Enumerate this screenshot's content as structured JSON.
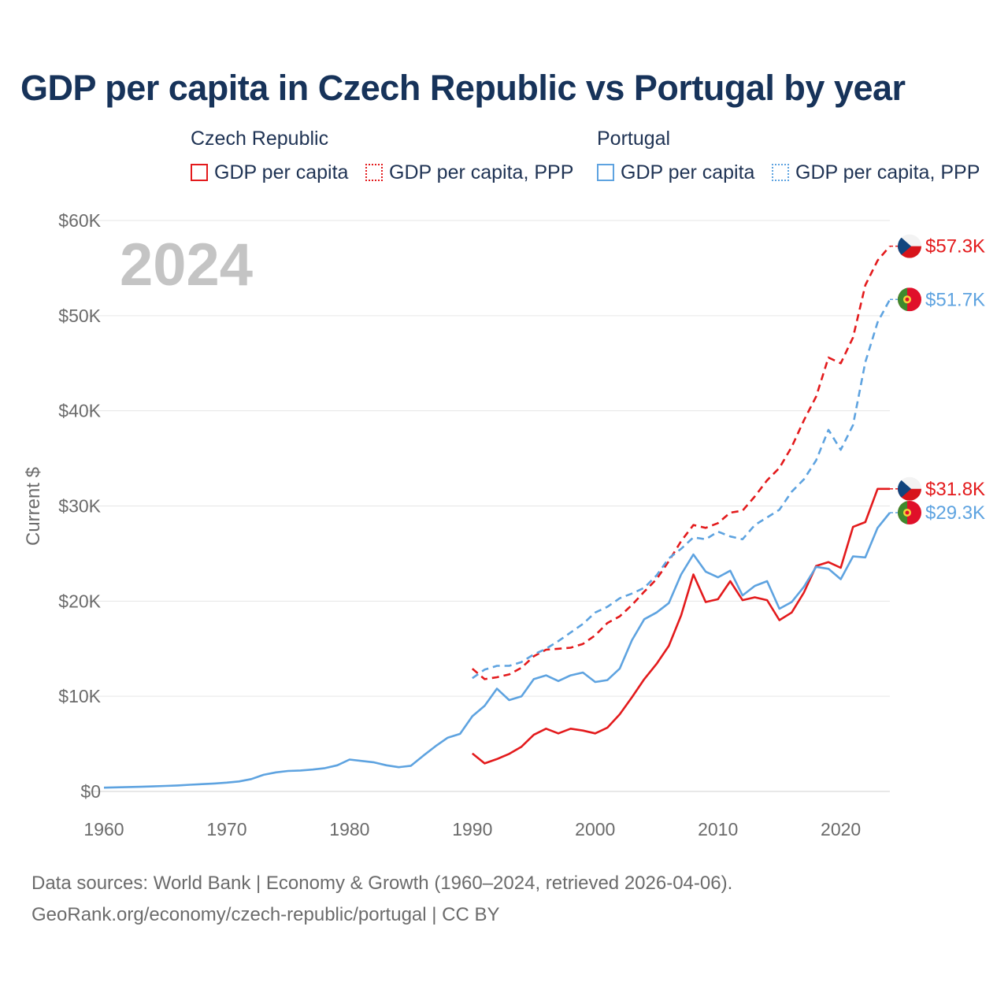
{
  "chart_data": {
    "type": "line",
    "title": "GDP per capita in Czech Republic vs Portugal by year",
    "year_label": "2024",
    "ylabel": "Current $",
    "xlim": [
      1960,
      2024
    ],
    "ylim": [
      0,
      60000
    ],
    "x_ticks": [
      1960,
      1970,
      1980,
      1990,
      2000,
      2010,
      2020
    ],
    "y_ticks": [
      {
        "value": 0,
        "label": "$0"
      },
      {
        "value": 10000,
        "label": "$10K"
      },
      {
        "value": 20000,
        "label": "$20K"
      },
      {
        "value": 30000,
        "label": "$30K"
      },
      {
        "value": 40000,
        "label": "$40K"
      },
      {
        "value": 50000,
        "label": "$50K"
      },
      {
        "value": 60000,
        "label": "$60K"
      }
    ],
    "legend": {
      "groups": [
        {
          "name": "Czech Republic",
          "items": [
            "GDP per capita",
            "GDP per capita, PPP"
          ]
        },
        {
          "name": "Portugal",
          "items": [
            "GDP per capita",
            "GDP per capita, PPP"
          ]
        }
      ]
    },
    "colors": {
      "czech": "#e31a1c",
      "portugal": "#5ea3e0",
      "grid": "#e6e6e6",
      "axis_text": "#6b6b6b",
      "year_label": "#c4c4c4"
    },
    "series": [
      {
        "name": "Czech Republic GDP per capita",
        "country": "czech",
        "style": "solid",
        "start_year": 1990,
        "values": [
          4000,
          2950,
          3400,
          3950,
          4700,
          5950,
          6600,
          6100,
          6600,
          6400,
          6100,
          6700,
          8100,
          9900,
          11800,
          13400,
          15300,
          18500,
          22800,
          19900,
          20200,
          22100,
          20100,
          20400,
          20100,
          18000,
          18800,
          20900,
          23700,
          24100,
          23500,
          27800,
          28300,
          31800,
          31800
        ],
        "end_label": "$31.8K"
      },
      {
        "name": "Czech Republic GDP per capita, PPP",
        "country": "czech",
        "style": "dashed",
        "start_year": 1990,
        "values": [
          12900,
          11800,
          12000,
          12300,
          13000,
          14200,
          14900,
          15000,
          15100,
          15500,
          16400,
          17700,
          18400,
          19600,
          21000,
          22300,
          24200,
          26300,
          28000,
          27700,
          28200,
          29300,
          29500,
          31000,
          32700,
          34000,
          36200,
          39000,
          41500,
          45600,
          45000,
          47700,
          53200,
          55800,
          57300
        ],
        "end_label": "$57.3K"
      },
      {
        "name": "Portugal GDP per capita",
        "country": "portugal",
        "style": "solid",
        "start_year": 1960,
        "values": [
          400,
          430,
          460,
          490,
          530,
          580,
          630,
          700,
          770,
          840,
          930,
          1050,
          1300,
          1750,
          2000,
          2150,
          2200,
          2300,
          2450,
          2750,
          3350,
          3200,
          3050,
          2750,
          2550,
          2700,
          3750,
          4750,
          5650,
          6050,
          7900,
          9000,
          10800,
          9600,
          10000,
          11800,
          12200,
          11600,
          12200,
          12500,
          11500,
          11700,
          12900,
          15900,
          18100,
          18800,
          19800,
          22800,
          24900,
          23100,
          22500,
          23200,
          20600,
          21600,
          22100,
          19200,
          19900,
          21500,
          23600,
          23400,
          22300,
          24700,
          24600,
          27700,
          29300
        ],
        "end_label": "$29.3K"
      },
      {
        "name": "Portugal GDP per capita, PPP",
        "country": "portugal",
        "style": "dashed",
        "start_year": 1990,
        "values": [
          11900,
          12800,
          13200,
          13200,
          13600,
          14400,
          15000,
          15800,
          16700,
          17600,
          18800,
          19400,
          20300,
          20800,
          21400,
          22700,
          24500,
          25500,
          26700,
          26500,
          27300,
          26800,
          26500,
          28000,
          28800,
          29600,
          31500,
          32800,
          34800,
          38000,
          35900,
          38500,
          45100,
          49300,
          51700
        ],
        "end_label": "$51.7K"
      }
    ]
  },
  "footer": {
    "line1": "Data sources: World Bank | Economy & Growth (1960–2024, retrieved 2026-04-06).",
    "line2": "GeoRank.org/economy/czech-republic/portugal | CC BY"
  }
}
